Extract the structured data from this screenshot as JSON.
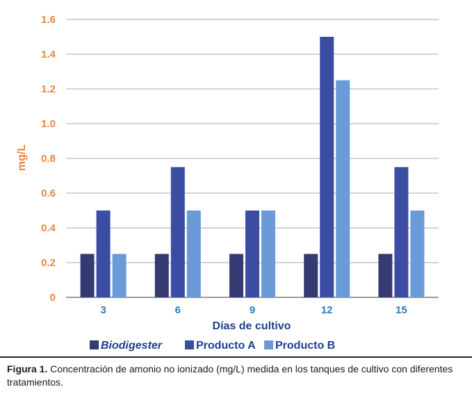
{
  "chart_data": {
    "type": "bar",
    "title": "",
    "ylabel": "mg/L",
    "xlabel": "Días de cultivo",
    "categories": [
      "3",
      "6",
      "9",
      "12",
      "15"
    ],
    "ylim": [
      0,
      1.6
    ],
    "yticks": [
      "0",
      "0.2",
      "0.4",
      "0.6",
      "0.8",
      "1.0",
      "1.2",
      "1.4",
      "1.6"
    ],
    "series": [
      {
        "name": "Biodigester",
        "color": "#353a72",
        "values": [
          0.25,
          0.25,
          0.25,
          0.25,
          0.25
        ]
      },
      {
        "name": "Producto A",
        "color": "#3a4da3",
        "values": [
          0.5,
          0.75,
          0.5,
          1.5,
          0.75
        ]
      },
      {
        "name": "Producto B",
        "color": "#6a9bd6",
        "values": [
          0.25,
          0.5,
          0.5,
          1.25,
          0.5
        ]
      }
    ],
    "grid": true,
    "legend_position": "bottom"
  },
  "caption": {
    "label": "Figura 1.",
    "text": " Concentración de amonio no ionizado (mg/L) medida en los tanques de cultivo con diferentes tratamientos."
  }
}
